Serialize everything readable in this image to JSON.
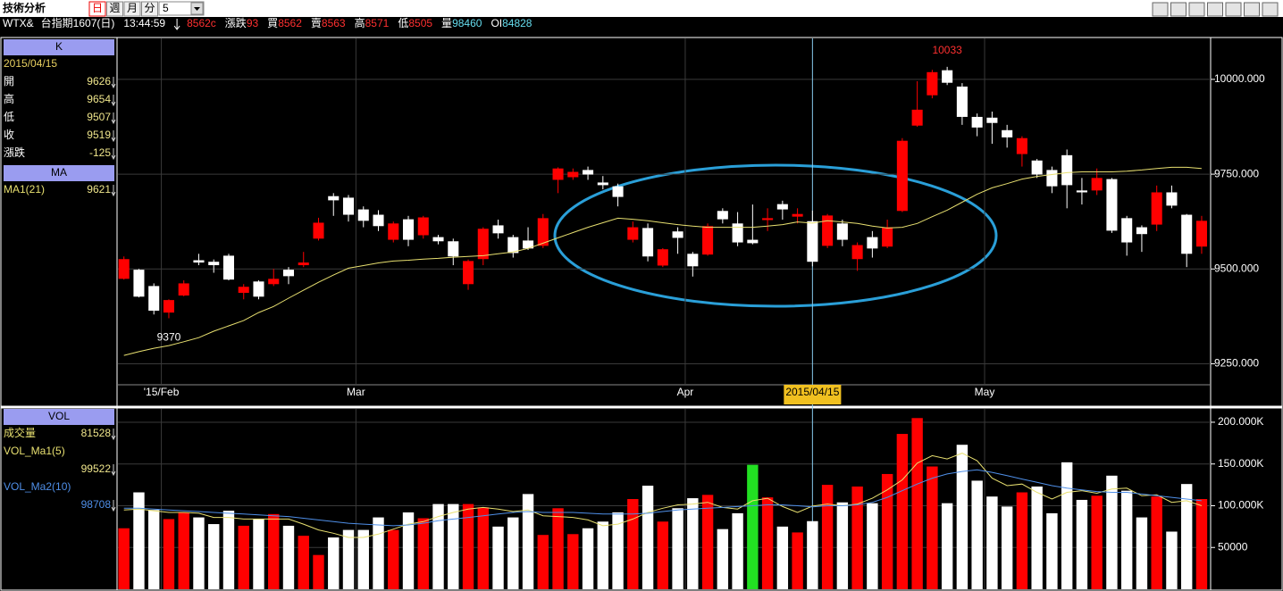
{
  "header": {
    "title": "技術分析",
    "tabs": [
      "日",
      "週",
      "月",
      "分"
    ],
    "selected_tab": 0,
    "interval": "5"
  },
  "quote": {
    "symbol": "WTX&",
    "name": "台指期1607(日)",
    "time": "13:44:59",
    "last": "8562c",
    "fields": [
      {
        "label": "漲跌",
        "value": "93",
        "color": "#ff3030"
      },
      {
        "label": "買",
        "value": "8562",
        "color": "#ff3030"
      },
      {
        "label": "賣",
        "value": "8563",
        "color": "#ff3030"
      },
      {
        "label": "高",
        "value": "8571",
        "color": "#ff3030"
      },
      {
        "label": "低",
        "value": "8505",
        "color": "#ff3030"
      },
      {
        "label": "量",
        "value": "98460",
        "color": "#66ddee"
      },
      {
        "label": "OI",
        "value": "84828",
        "color": "#66ddee"
      }
    ]
  },
  "left_panel": {
    "k_title": "K",
    "labels": [
      "開",
      "高",
      "低",
      "收"
    ],
    "change": {
      "label": "漲跌",
      "value": -125
    },
    "ma_title": "MA",
    "vol_title": "VOL",
    "vol_label": "成交量"
  },
  "chart_data": [
    {
      "type": "candlestick",
      "up_color": "#ff0000",
      "down_color": "#ffffff",
      "categories": [
        null,
        null,
        null,
        "'15/Feb",
        null,
        null,
        null,
        null,
        null,
        null,
        null,
        null,
        null,
        null,
        null,
        null,
        "Mar",
        null,
        null,
        null,
        null,
        null,
        null,
        null,
        null,
        null,
        null,
        null,
        null,
        null,
        null,
        null,
        null,
        null,
        null,
        null,
        null,
        null,
        "Apr",
        null,
        null,
        null,
        null,
        null,
        null,
        null,
        null,
        null,
        null,
        null,
        null,
        null,
        null,
        null,
        null,
        null,
        null,
        null,
        "May",
        null,
        null,
        null,
        null,
        null,
        null,
        null,
        null,
        null,
        null,
        null,
        null,
        null,
        null
      ],
      "crosshair": {
        "index": 46,
        "label": "2015/04/15"
      },
      "open": [
        9474,
        9498,
        9455,
        9385,
        9430,
        9523,
        9519,
        9535,
        9437,
        9467,
        9460,
        9498,
        9510,
        9580,
        9692,
        9688,
        9657,
        9643,
        9577,
        9631,
        9589,
        9584,
        9573,
        9460,
        9526,
        9615,
        9584,
        9575,
        9561,
        9735,
        9742,
        9761,
        9728,
        9718,
        9577,
        9608,
        9509,
        9599,
        9540,
        9538,
        9653,
        9620,
        9577,
        9629,
        9671,
        9638,
        9626,
        9561,
        9620,
        9526,
        9584,
        9559,
        9653,
        9878,
        9958,
        10024,
        9981,
        9901,
        9899,
        9866,
        9803,
        9786,
        9761,
        9800,
        9707,
        9707,
        9737,
        9634,
        9610,
        9617,
        9702,
        9643,
        9559
      ],
      "high": [
        9533,
        9500,
        9462,
        9420,
        9470,
        9540,
        9525,
        9540,
        9460,
        9470,
        9500,
        9505,
        9545,
        9635,
        9700,
        9695,
        9665,
        9655,
        9625,
        9640,
        9640,
        9590,
        9580,
        9525,
        9610,
        9630,
        9590,
        9610,
        9645,
        9768,
        9765,
        9770,
        9745,
        9725,
        9625,
        9620,
        9555,
        9610,
        9545,
        9620,
        9660,
        9650,
        9670,
        9660,
        9680,
        9660,
        9654,
        9645,
        9630,
        9570,
        9600,
        9630,
        9845,
        9995,
        10025,
        10033,
        9990,
        9910,
        9915,
        9880,
        9850,
        9790,
        9770,
        9815,
        9740,
        9765,
        9740,
        9640,
        9615,
        9720,
        9720,
        9645,
        9640
      ],
      "low": [
        9472,
        9425,
        9380,
        9370,
        9428,
        9510,
        9490,
        9470,
        9420,
        9420,
        9455,
        9460,
        9505,
        9575,
        9640,
        9625,
        9610,
        9600,
        9570,
        9560,
        9580,
        9565,
        9510,
        9445,
        9510,
        9580,
        9530,
        9550,
        9555,
        9700,
        9735,
        9735,
        9710,
        9665,
        9570,
        9520,
        9505,
        9540,
        9480,
        9535,
        9620,
        9560,
        9565,
        9600,
        9630,
        9620,
        9507,
        9555,
        9560,
        9495,
        9530,
        9555,
        9650,
        9875,
        9950,
        9985,
        9880,
        9850,
        9830,
        9820,
        9770,
        9740,
        9700,
        9660,
        9670,
        9695,
        9595,
        9535,
        9545,
        9600,
        9660,
        9505,
        9540
      ],
      "close": [
        9526,
        9427,
        9390,
        9418,
        9462,
        9517,
        9510,
        9472,
        9453,
        9427,
        9474,
        9481,
        9517,
        9622,
        9681,
        9643,
        9627,
        9613,
        9620,
        9577,
        9636,
        9573,
        9533,
        9521,
        9606,
        9594,
        9542,
        9554,
        9634,
        9765,
        9756,
        9749,
        9721,
        9690,
        9610,
        9533,
        9552,
        9582,
        9507,
        9613,
        9631,
        9570,
        9568,
        9634,
        9657,
        9645,
        9519,
        9641,
        9577,
        9563,
        9554,
        9610,
        9838,
        9920,
        10019,
        9991,
        9901,
        9873,
        9885,
        9847,
        9845,
        9749,
        9718,
        9721,
        9702,
        9740,
        9601,
        9570,
        9592,
        9702,
        9667,
        9540,
        9627
      ],
      "series": [
        {
          "name": "MA1(21)",
          "color": "#e8e070",
          "values": [
            9272,
            9282,
            9291,
            9298,
            9308,
            9319,
            9336,
            9350,
            9364,
            9385,
            9401,
            9423,
            9444,
            9465,
            9484,
            9502,
            9509,
            9516,
            9521,
            9523,
            9526,
            9528,
            9531,
            9533,
            9535,
            9540,
            9545,
            9554,
            9568,
            9582,
            9596,
            9610,
            9622,
            9634,
            9631,
            9627,
            9622,
            9617,
            9613,
            9610,
            9610,
            9610,
            9610,
            9613,
            9617,
            9624,
            9621,
            9627,
            9624,
            9620,
            9613,
            9608,
            9610,
            9620,
            9638,
            9655,
            9676,
            9697,
            9714,
            9725,
            9737,
            9744,
            9749,
            9754,
            9756,
            9756,
            9756,
            9758,
            9761,
            9765,
            9768,
            9768,
            9765
          ]
        }
      ],
      "ylim": [
        9197,
        10108
      ],
      "yticks": [
        {
          "value": 9250,
          "label": "9250.000"
        },
        {
          "value": 9500,
          "label": "9500.000"
        },
        {
          "value": 9750,
          "label": "9750.000"
        },
        {
          "value": 10000,
          "label": "10000.000"
        }
      ],
      "grid": true
    },
    {
      "type": "volume",
      "values": [
        73000,
        116000,
        95000,
        84000,
        92000,
        86000,
        78000,
        94000,
        76000,
        84000,
        90000,
        76000,
        64000,
        41000,
        62000,
        71000,
        71000,
        86000,
        71000,
        92000,
        85000,
        102000,
        102000,
        102000,
        98000,
        75000,
        86000,
        114000,
        65000,
        97000,
        66000,
        73000,
        81000,
        92000,
        108000,
        124000,
        81000,
        97000,
        109000,
        113000,
        72000,
        91000,
        149000,
        110000,
        75000,
        68000,
        81528,
        125000,
        104000,
        123000,
        103000,
        138000,
        186000,
        205000,
        147000,
        103000,
        173000,
        130000,
        111000,
        99000,
        116000,
        123000,
        91000,
        152000,
        107000,
        112000,
        136000,
        118000,
        86000,
        111000,
        69000,
        126000,
        108000
      ],
      "highlight": {
        "index": 42,
        "color": "#22e022"
      },
      "series": [
        {
          "name": "VOL_Ma1(5)",
          "color": "#e8e070",
          "values": [
            95000,
            96000,
            94000,
            92000,
            92000,
            91000,
            86000,
            86000,
            84000,
            84000,
            84000,
            84000,
            78000,
            71000,
            67000,
            62000,
            62000,
            66000,
            72000,
            78000,
            81000,
            87000,
            92000,
            96000,
            98000,
            96000,
            93000,
            95000,
            88000,
            87000,
            86000,
            83000,
            76000,
            78000,
            84000,
            92000,
            97000,
            101000,
            102000,
            104000,
            98000,
            96000,
            106000,
            109000,
            99000,
            92000,
            99522,
            102000,
            100000,
            102000,
            109000,
            119000,
            131000,
            151000,
            160000,
            156000,
            163000,
            154000,
            133000,
            124000,
            126000,
            116000,
            108000,
            116000,
            118000,
            115000,
            120000,
            121000,
            112000,
            113000,
            104000,
            106000,
            100000
          ]
        },
        {
          "name": "VOL_Ma2(10)",
          "color": "#4f8fe8",
          "values": [
            97000,
            97000,
            96000,
            95000,
            94000,
            93000,
            92000,
            91000,
            90000,
            89000,
            88000,
            87000,
            85000,
            83000,
            81000,
            79000,
            78000,
            77000,
            76000,
            77000,
            79000,
            82000,
            84000,
            86000,
            88000,
            90000,
            92000,
            93000,
            92000,
            92000,
            92000,
            91000,
            90000,
            90000,
            90000,
            91000,
            93000,
            95000,
            96000,
            97000,
            98000,
            99000,
            100000,
            101000,
            101000,
            100000,
            98708,
            100000,
            100000,
            101000,
            104000,
            110000,
            118000,
            126000,
            133000,
            138000,
            141000,
            143000,
            140000,
            136000,
            132000,
            128000,
            124000,
            121000,
            119000,
            117000,
            116000,
            116000,
            114000,
            112000,
            110000,
            108000,
            106000
          ]
        }
      ],
      "ylim": [
        0,
        216000
      ],
      "yticks": [
        50000,
        {
          "value": 100000,
          "label": "100.000K"
        },
        {
          "value": 150000,
          "label": "150.000K"
        },
        {
          "value": 200000,
          "label": "200.000K"
        }
      ],
      "grid": true
    }
  ]
}
